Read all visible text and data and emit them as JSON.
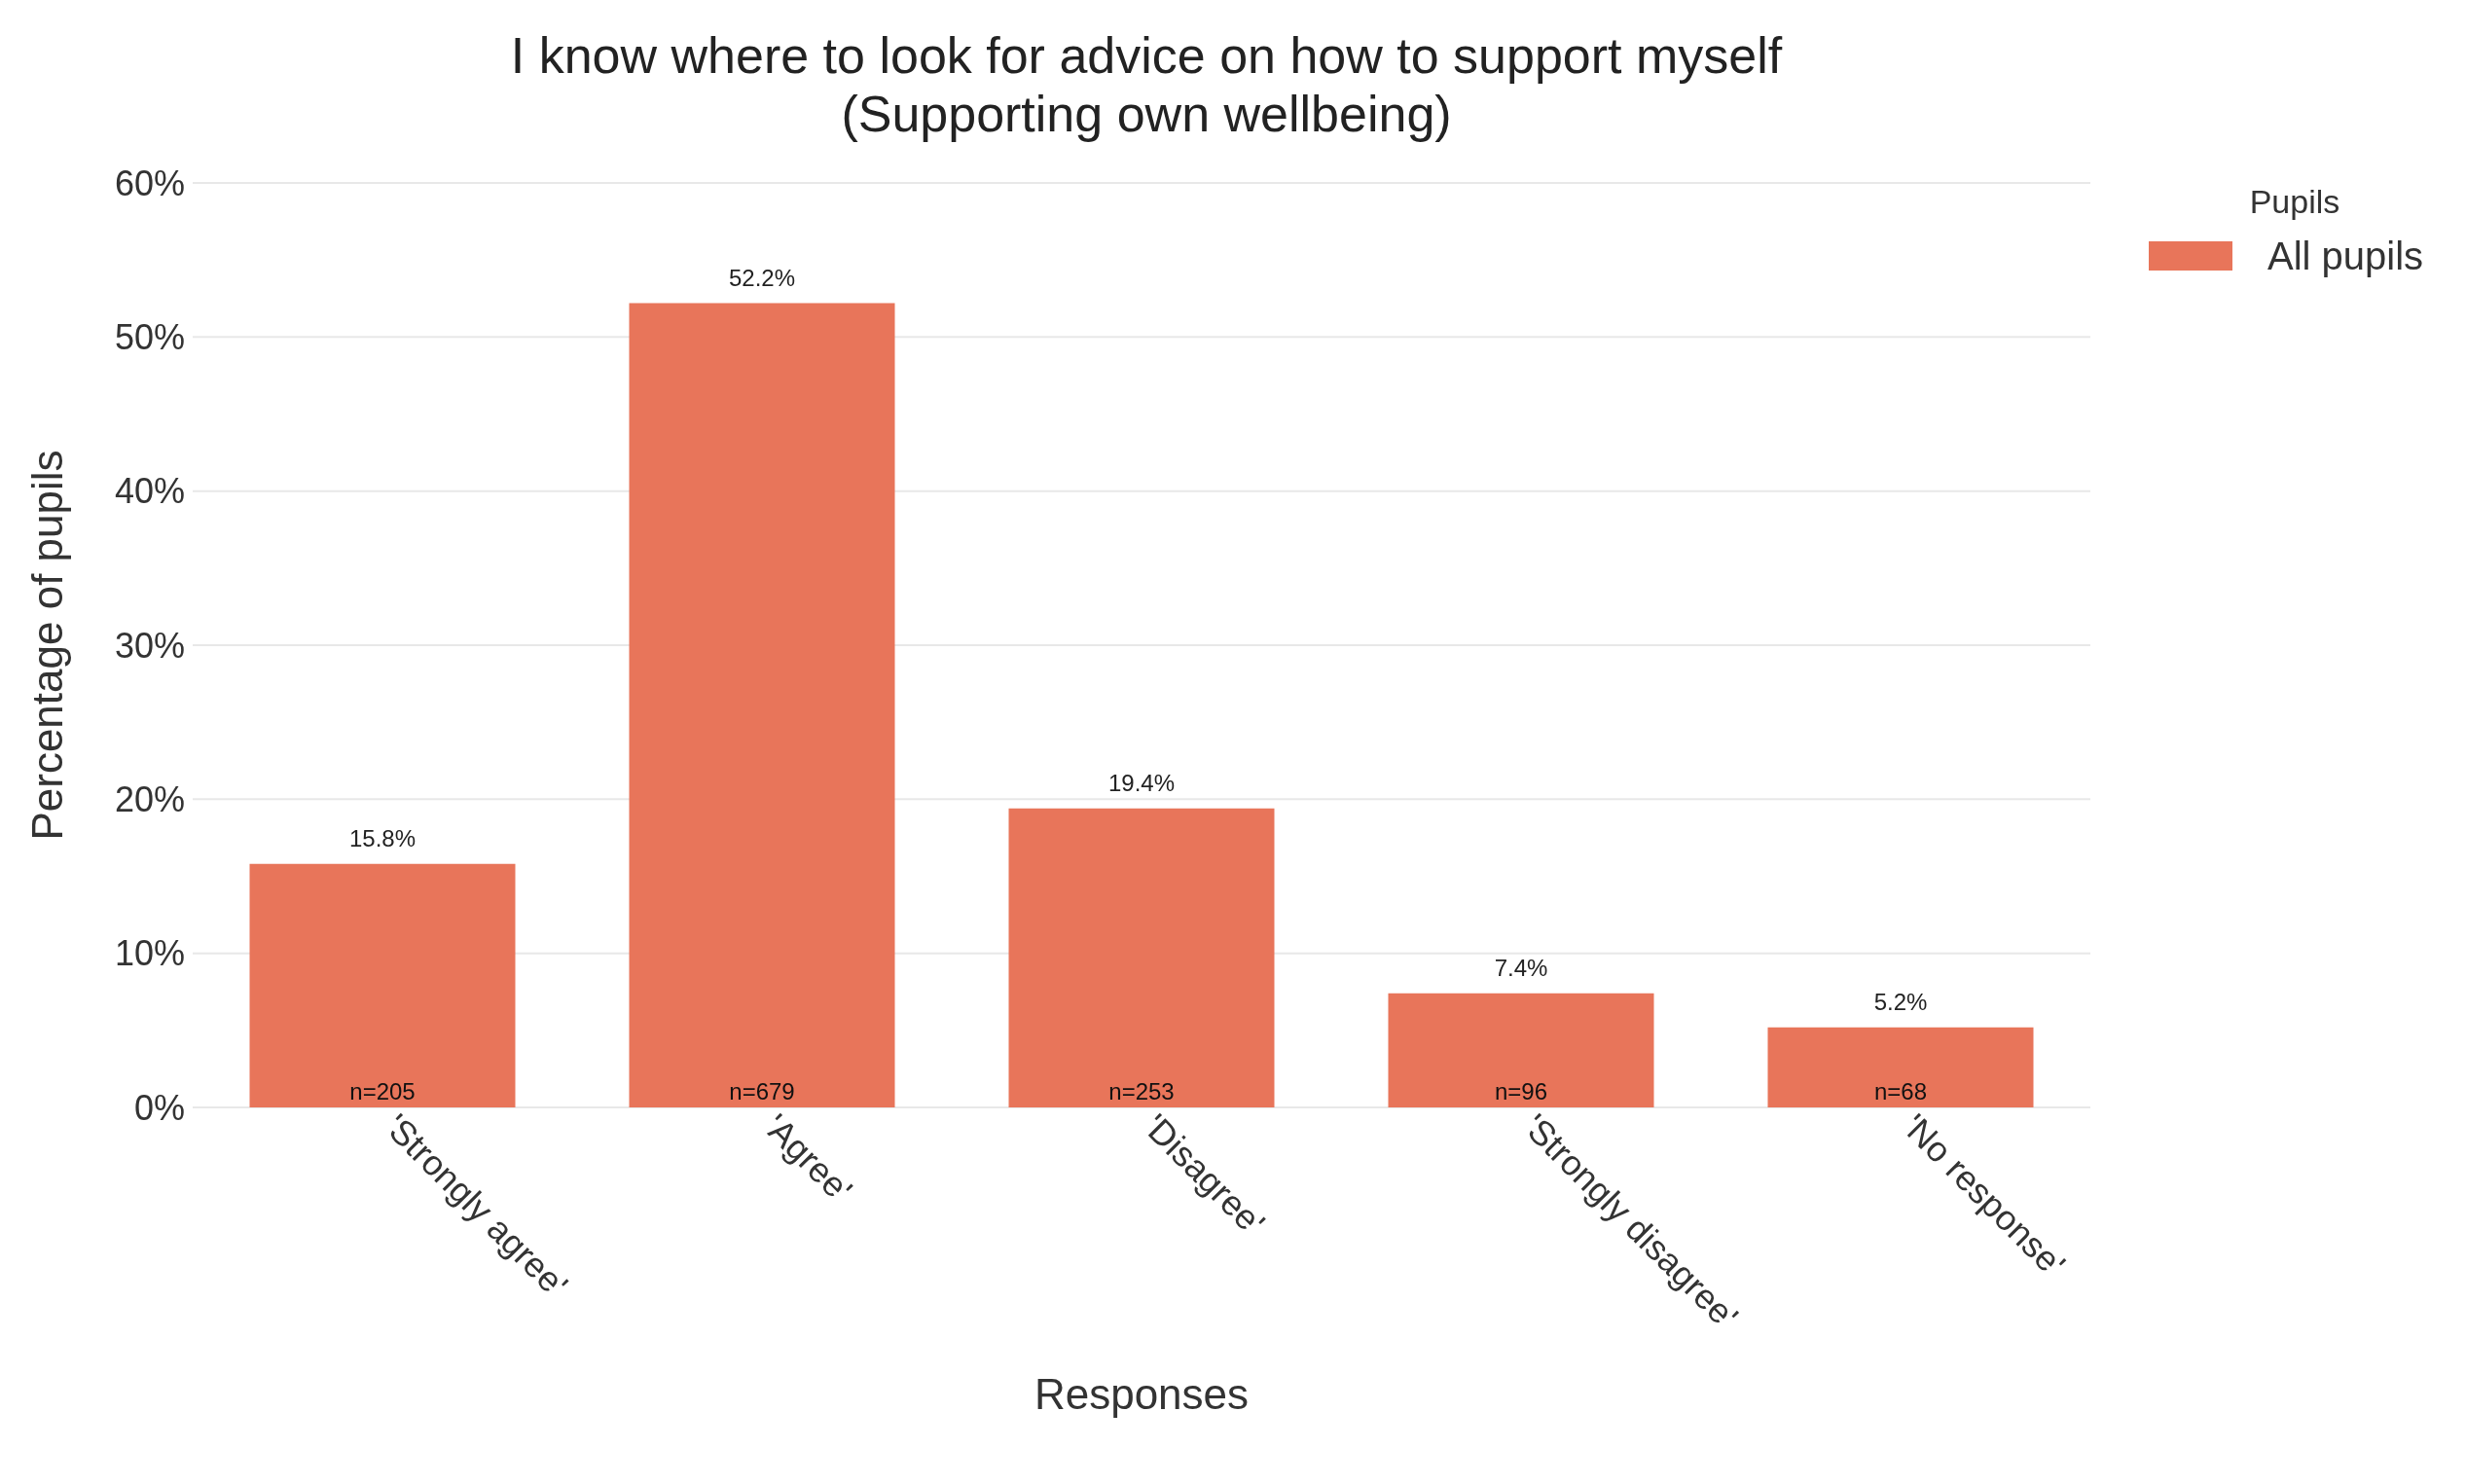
{
  "chart_data": {
    "type": "bar",
    "title": "I know where to look for advice on how to support myself\n(Supporting own wellbeing)",
    "xlabel": "Responses",
    "ylabel": "Percentage of pupils",
    "legend_title": "Pupils",
    "categories": [
      "'Strongly agree'",
      "'Agree'",
      "'Disagree'",
      "'Strongly disagree'",
      "'No response'"
    ],
    "series": [
      {
        "name": "All pupils",
        "color": "#e8755a",
        "values": [
          15.8,
          52.2,
          19.4,
          7.4,
          5.2
        ],
        "value_labels": [
          "15.8%",
          "52.2%",
          "19.4%",
          "7.4%",
          "5.2%"
        ]
      }
    ],
    "ylim": [
      0,
      60
    ],
    "yticks": [
      {
        "value": 0,
        "label": "0%"
      },
      {
        "value": 10,
        "label": "10%"
      },
      {
        "value": 20,
        "label": "20%"
      },
      {
        "value": 30,
        "label": "30%"
      },
      {
        "value": 40,
        "label": "40%"
      },
      {
        "value": 50,
        "label": "50%"
      },
      {
        "value": 60,
        "label": "60%"
      }
    ],
    "grid": "y",
    "legend": "top right",
    "annotations": [
      {
        "text": "n=205",
        "x": "'Strongly agree'",
        "y": 0
      },
      {
        "text": "n=679",
        "x": "'Agree'",
        "y": 0
      },
      {
        "text": "n=253",
        "x": "'Disagree'",
        "y": 0
      },
      {
        "text": "n=96",
        "x": "'Strongly disagree'",
        "y": 0
      },
      {
        "text": "n=68",
        "x": "'No response'",
        "y": 0
      }
    ]
  }
}
